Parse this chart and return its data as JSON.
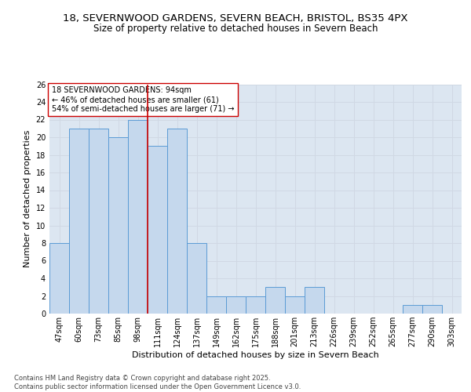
{
  "title1": "18, SEVERNWOOD GARDENS, SEVERN BEACH, BRISTOL, BS35 4PX",
  "title2": "Size of property relative to detached houses in Severn Beach",
  "xlabel": "Distribution of detached houses by size in Severn Beach",
  "ylabel": "Number of detached properties",
  "categories": [
    "47sqm",
    "60sqm",
    "73sqm",
    "85sqm",
    "98sqm",
    "111sqm",
    "124sqm",
    "137sqm",
    "149sqm",
    "162sqm",
    "175sqm",
    "188sqm",
    "201sqm",
    "213sqm",
    "226sqm",
    "239sqm",
    "252sqm",
    "265sqm",
    "277sqm",
    "290sqm",
    "303sqm"
  ],
  "values": [
    8,
    21,
    21,
    20,
    22,
    19,
    21,
    8,
    2,
    2,
    2,
    3,
    2,
    3,
    0,
    0,
    0,
    0,
    1,
    1,
    0
  ],
  "bar_color": "#c5d8ed",
  "bar_edge_color": "#5b9bd5",
  "vline_index": 4.5,
  "vline_color": "#cc0000",
  "annotation_text": "18 SEVERNWOOD GARDENS: 94sqm\n← 46% of detached houses are smaller (61)\n54% of semi-detached houses are larger (71) →",
  "annotation_box_color": "#ffffff",
  "annotation_box_edge": "#cc0000",
  "ylim": [
    0,
    26
  ],
  "yticks": [
    0,
    2,
    4,
    6,
    8,
    10,
    12,
    14,
    16,
    18,
    20,
    22,
    24,
    26
  ],
  "grid_color": "#d0d8e4",
  "plot_bg_color": "#dce6f1",
  "footer": "Contains HM Land Registry data © Crown copyright and database right 2025.\nContains public sector information licensed under the Open Government Licence v3.0.",
  "title_fontsize": 9.5,
  "subtitle_fontsize": 8.5,
  "tick_fontsize": 7,
  "label_fontsize": 8,
  "annot_fontsize": 7,
  "footer_fontsize": 6
}
